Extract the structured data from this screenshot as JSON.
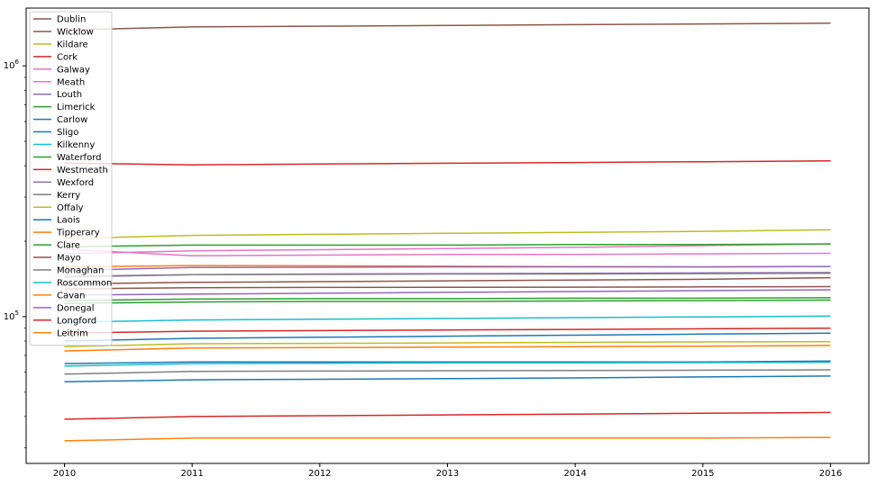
{
  "chart_data": {
    "type": "line",
    "title": "",
    "xlabel": "",
    "ylabel": "",
    "y_scale": "log",
    "ylim": [
      26000,
      1700000
    ],
    "xlim": [
      2009.7,
      2016.3
    ],
    "x": [
      2010,
      2011,
      2012,
      2013,
      2014,
      2015,
      2016
    ],
    "x_tick_labels": [
      "2010",
      "2011",
      "2012",
      "2013",
      "2014",
      "2015",
      "2016"
    ],
    "y_ticks": [
      {
        "value": 1000000,
        "base": "10",
        "exp": "6"
      },
      {
        "value": 100000,
        "base": "10",
        "exp": "5"
      }
    ],
    "legend_position": "upper-left",
    "grid": false,
    "series": [
      {
        "name": "Dublin",
        "color": "#8c564b",
        "values": [
          1390000,
          1430000,
          1440000,
          1450000,
          1460000,
          1470000,
          1480000
        ]
      },
      {
        "name": "Wicklow",
        "color": "#8c564b",
        "values": [
          135000,
          137000,
          138000,
          139000,
          140000,
          141000,
          143000
        ]
      },
      {
        "name": "Kildare",
        "color": "#bcbd22",
        "values": [
          205000,
          211000,
          213000,
          215000,
          217000,
          219000,
          222000
        ]
      },
      {
        "name": "Cork",
        "color": "#d62728",
        "values": [
          410000,
          403000,
          406000,
          409000,
          412000,
          415000,
          418000
        ]
      },
      {
        "name": "Galway",
        "color": "#e377c2",
        "values": [
          186000,
          175000,
          176000,
          177000,
          177000,
          178000,
          179000
        ]
      },
      {
        "name": "Meath",
        "color": "#e377c2",
        "values": [
          178000,
          183000,
          185000,
          187000,
          189000,
          192000,
          195000
        ]
      },
      {
        "name": "Louth",
        "color": "#9467bd",
        "values": [
          122000,
          123000,
          124000,
          125000,
          126000,
          127000,
          128000
        ]
      },
      {
        "name": "Limerick",
        "color": "#2ca02c",
        "values": [
          190000,
          193000,
          193000,
          193000,
          194000,
          194000,
          195000
        ]
      },
      {
        "name": "Carlow",
        "color": "#1f77b4",
        "values": [
          55000,
          56000,
          56300,
          56600,
          57000,
          57500,
          58000
        ]
      },
      {
        "name": "Sligo",
        "color": "#1f77b4",
        "values": [
          65000,
          66000,
          66000,
          66000,
          66000,
          66000,
          66500
        ]
      },
      {
        "name": "Kilkenny",
        "color": "#17becf",
        "values": [
          95000,
          97000,
          97700,
          98400,
          99100,
          99800,
          100500
        ]
      },
      {
        "name": "Waterford",
        "color": "#2ca02c",
        "values": [
          113000,
          114500,
          115000,
          115000,
          115500,
          116000,
          116500
        ]
      },
      {
        "name": "Westmeath",
        "color": "#d62728",
        "values": [
          86000,
          87500,
          88000,
          88500,
          89000,
          89500,
          90000
        ]
      },
      {
        "name": "Wexford",
        "color": "#9467bd",
        "values": [
          144000,
          147000,
          148000,
          148500,
          149000,
          149500,
          150000
        ]
      },
      {
        "name": "Kerry",
        "color": "#7f7f7f",
        "values": [
          145000,
          147000,
          147500,
          148000,
          148000,
          148500,
          149000
        ]
      },
      {
        "name": "Offaly",
        "color": "#bcbd22",
        "values": [
          76000,
          78000,
          78300,
          78600,
          79000,
          79300,
          79600
        ]
      },
      {
        "name": "Laois",
        "color": "#1f77b4",
        "values": [
          80000,
          82000,
          82800,
          83600,
          84400,
          85200,
          86000
        ]
      },
      {
        "name": "Tipperary",
        "color": "#ff7f0e",
        "values": [
          158000,
          160000,
          159500,
          159000,
          158500,
          158000,
          158500
        ]
      },
      {
        "name": "Clare",
        "color": "#2ca02c",
        "values": [
          116000,
          117500,
          118000,
          118000,
          118500,
          118500,
          119000
        ]
      },
      {
        "name": "Mayo",
        "color": "#8c564b",
        "values": [
          129000,
          130500,
          130800,
          131000,
          131200,
          131500,
          131800
        ]
      },
      {
        "name": "Monaghan",
        "color": "#7f7f7f",
        "values": [
          59000,
          60500,
          60700,
          60900,
          61000,
          61200,
          61400
        ]
      },
      {
        "name": "Roscommon",
        "color": "#17becf",
        "values": [
          63500,
          65000,
          65200,
          65400,
          65500,
          65600,
          65800
        ]
      },
      {
        "name": "Cavan",
        "color": "#ff7f0e",
        "values": [
          73000,
          75000,
          75300,
          75600,
          76000,
          76300,
          76800
        ]
      },
      {
        "name": "Donegal",
        "color": "#9467bd",
        "values": [
          153000,
          157000,
          157500,
          158000,
          158000,
          158000,
          158500
        ]
      },
      {
        "name": "Longford",
        "color": "#d62728",
        "values": [
          39000,
          40000,
          40300,
          40600,
          40900,
          41200,
          41500
        ]
      },
      {
        "name": "Leitrim",
        "color": "#ff7f0e",
        "values": [
          32000,
          32800,
          32800,
          32800,
          32800,
          32800,
          33000
        ]
      }
    ]
  }
}
